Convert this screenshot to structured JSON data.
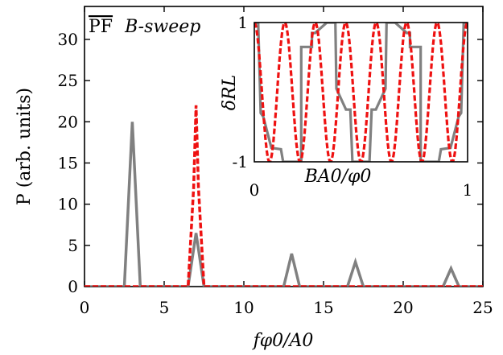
{
  "chart_data": [
    {
      "type": "line",
      "annotation_overline": "PF",
      "annotation_rest": "B-sweep",
      "xlabel": "fφ0/A0",
      "ylabel": "P (arb. units)",
      "xlim": [
        0,
        25
      ],
      "ylim": [
        0,
        34
      ],
      "xticks": [
        0,
        5,
        10,
        15,
        20,
        25
      ],
      "yticks": [
        0,
        5,
        10,
        15,
        20,
        25,
        30
      ],
      "grid": false,
      "legend": "none",
      "series": [
        {
          "style": "solid",
          "color": "#808080",
          "x": [
            0,
            2.5,
            3.0,
            3.5,
            6.5,
            7.0,
            7.5,
            12.5,
            13.0,
            13.5,
            16.5,
            17.0,
            17.5,
            22.5,
            23.0,
            23.5,
            25
          ],
          "y": [
            0,
            0,
            20.0,
            0,
            0,
            6.5,
            0,
            0,
            4.0,
            0,
            0,
            3.0,
            0,
            0,
            2.2,
            0,
            0
          ]
        },
        {
          "style": "dashed",
          "color": "#ee1111",
          "x": [
            0,
            6.5,
            6.85,
            7.0,
            7.15,
            7.5,
            25
          ],
          "y": [
            0,
            0,
            12.0,
            22.0,
            12.0,
            0,
            0
          ]
        }
      ]
    },
    {
      "type": "line",
      "inset": true,
      "xlabel": "BA0/φ0",
      "ylabel": "δRL",
      "xlim": [
        0,
        1
      ],
      "ylim": [
        -1,
        1
      ],
      "xticks": [
        0,
        1
      ],
      "yticks": [
        -1,
        1
      ],
      "series": [
        {
          "style": "dashed",
          "color": "#ee1111",
          "function": "cos(2π·7·x)"
        },
        {
          "style": "solid",
          "color": "#808080",
          "x": [
            0,
            0.018,
            0.03,
            0.042,
            0.08,
            0.125,
            0.135,
            0.16,
            0.18,
            0.22,
            0.22,
            0.27,
            0.27,
            0.285,
            0.34,
            0.36,
            0.38,
            0.385,
            0.43,
            0.45,
            0.46,
            0.54,
            0.55,
            0.57,
            0.615,
            0.62,
            0.64,
            0.66,
            0.715,
            0.73,
            0.73,
            0.78,
            0.78,
            0.82,
            0.84,
            0.865,
            0.875,
            0.92,
            0.958,
            0.97,
            0.982,
            1.0
          ],
          "y": [
            1,
            1,
            -0.3,
            -0.35,
            -0.8,
            -0.82,
            -1,
            -1,
            -1,
            -1,
            0.65,
            0.65,
            0.85,
            0.85,
            1,
            1,
            1,
            0.05,
            -0.25,
            -0.25,
            -1,
            -1,
            -0.25,
            -0.25,
            0.05,
            1,
            1,
            1,
            0.85,
            0.85,
            0.65,
            0.65,
            -1,
            -1,
            -1,
            -1,
            -0.82,
            -0.8,
            -0.35,
            -0.3,
            1,
            1
          ]
        }
      ]
    }
  ]
}
